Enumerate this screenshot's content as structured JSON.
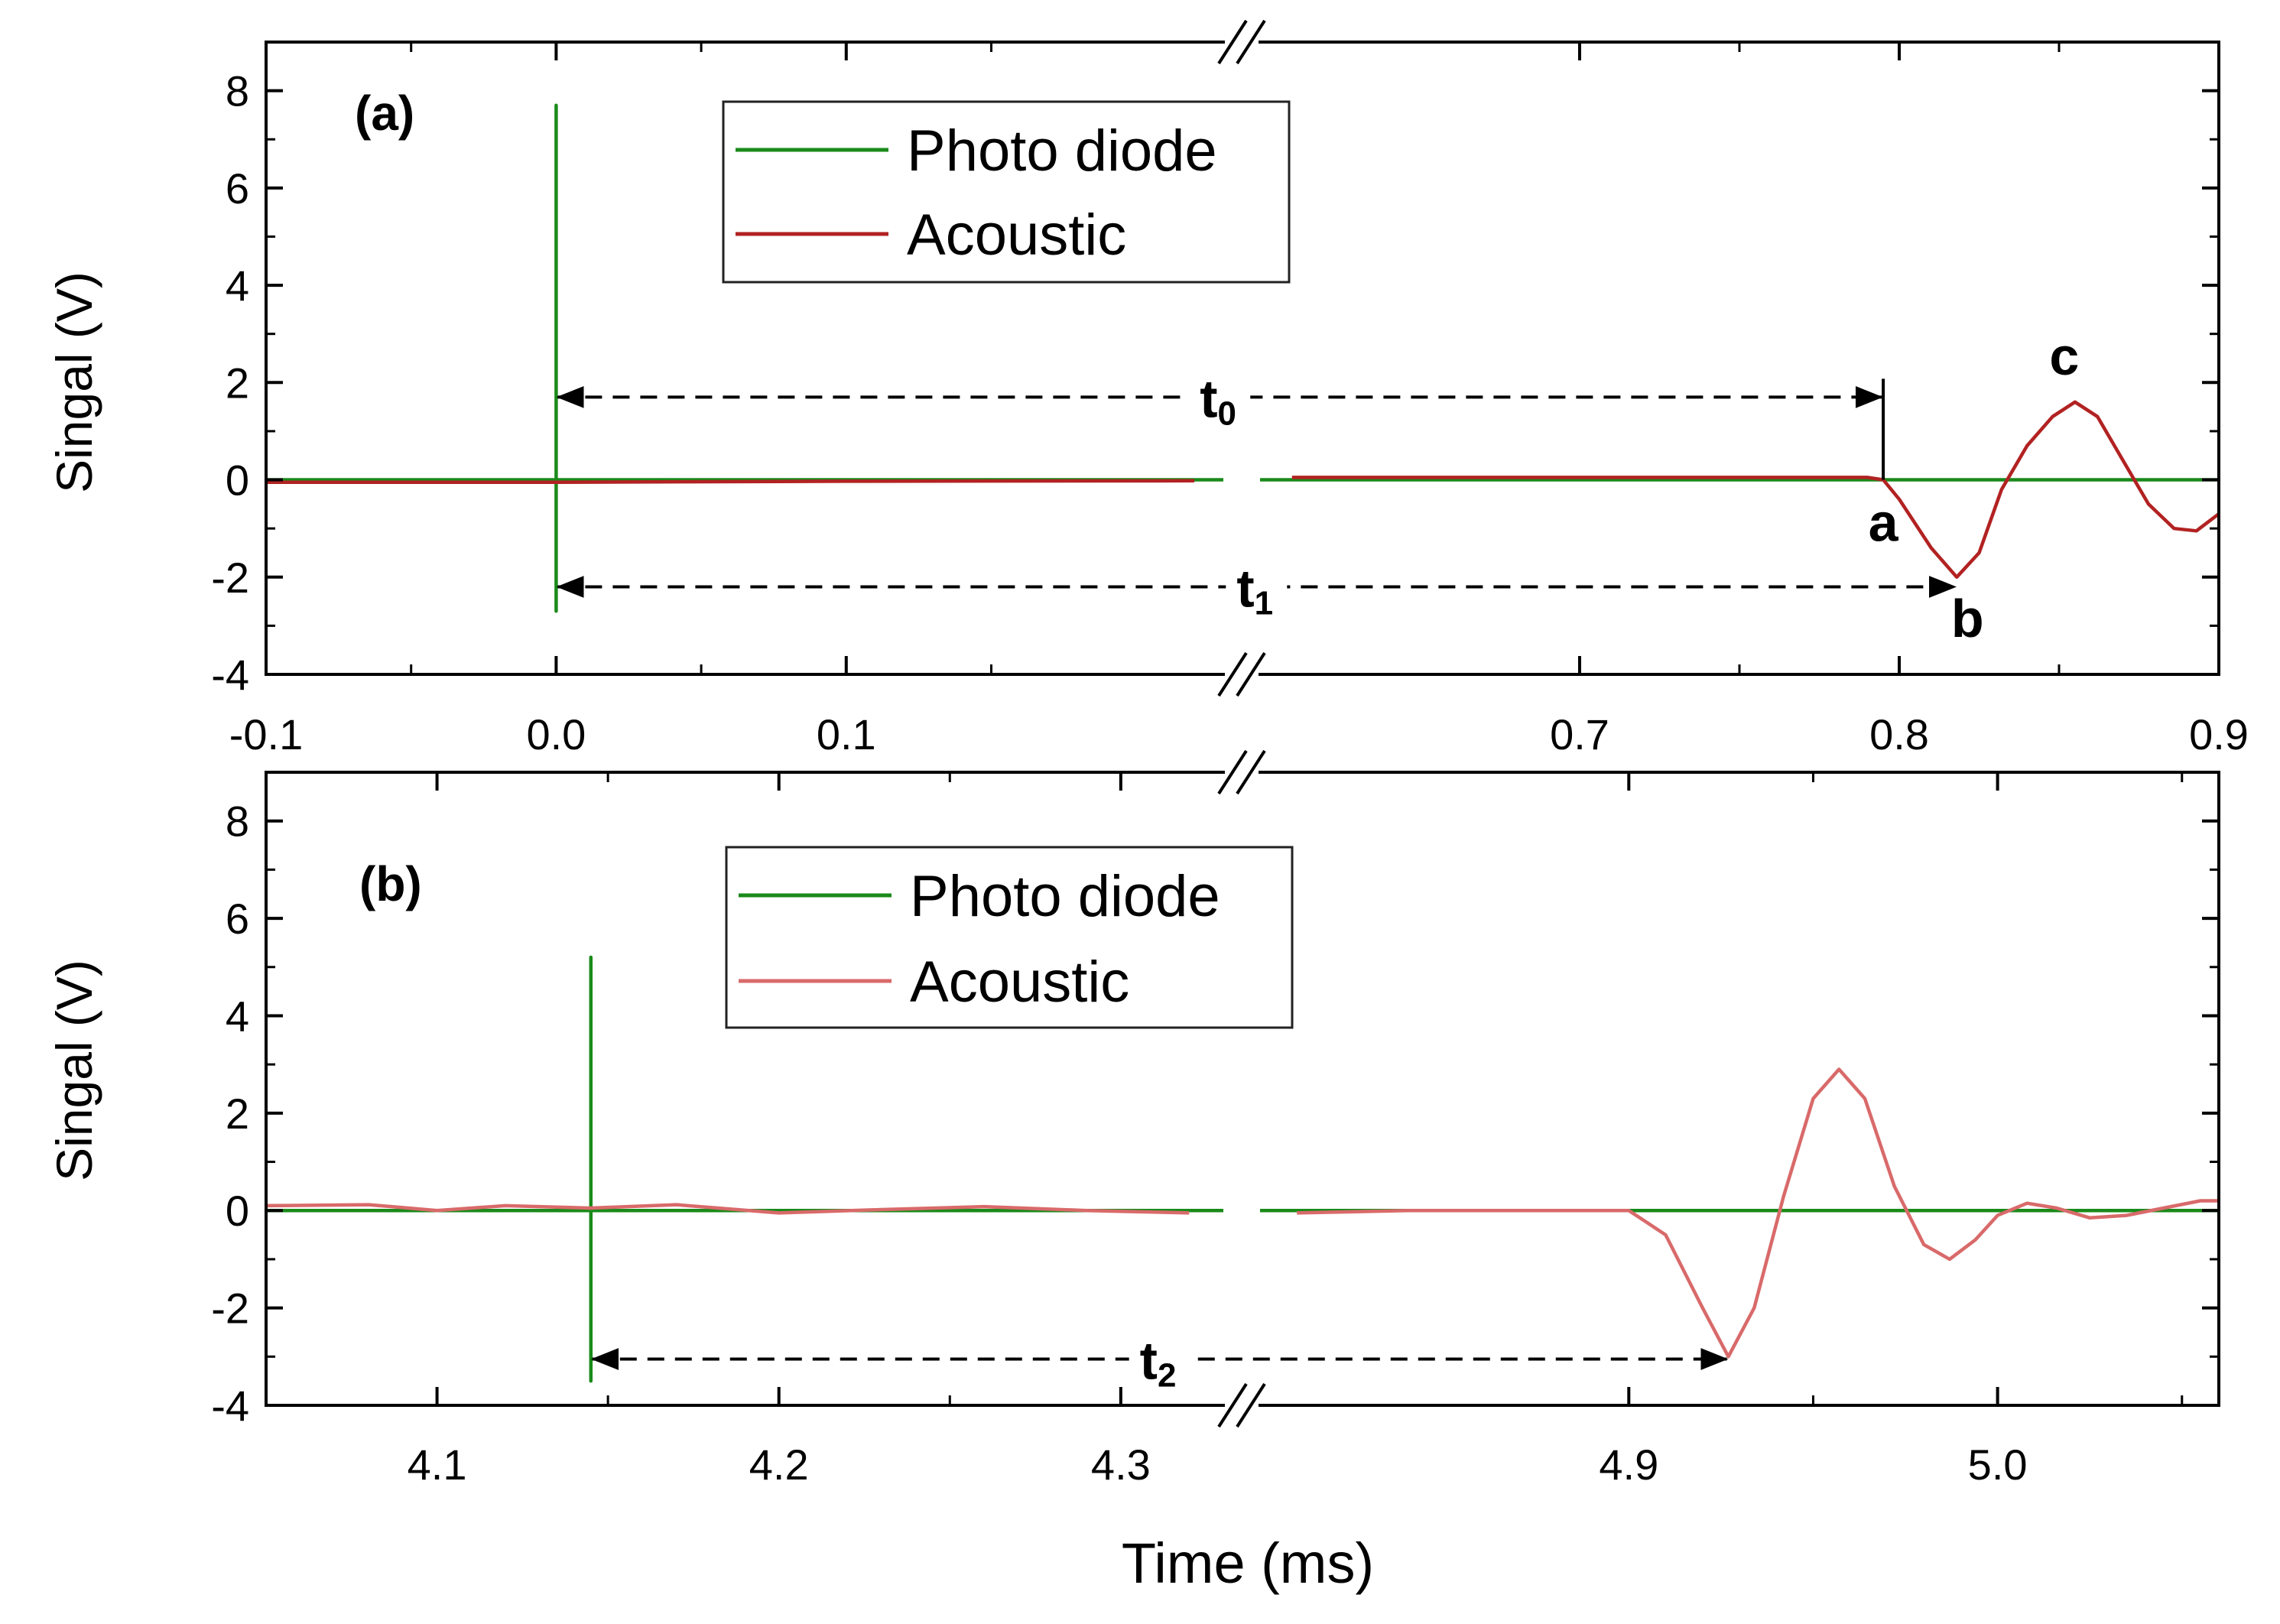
{
  "chart_data": [
    {
      "type": "line",
      "panel_label": "(a)",
      "ylabel": "Singal (V)",
      "xlabel": "",
      "ylim": [
        -4,
        9
      ],
      "yticks": [
        "8",
        "6",
        "4",
        "2",
        "0",
        "-2",
        "-4"
      ],
      "x_segments": [
        {
          "xlim": [
            -0.1,
            0.23
          ],
          "ticks": [
            "-0.1",
            "0.0",
            "0.1"
          ],
          "tick_values": [
            -0.1,
            0.0,
            0.1
          ]
        },
        {
          "xlim": [
            0.6,
            0.9
          ],
          "ticks": [
            "0.7",
            "0.8",
            "0.9"
          ],
          "tick_values": [
            0.7,
            0.8,
            0.9
          ]
        }
      ],
      "legend": {
        "placement": "top-center",
        "entries": [
          {
            "label": "Photo diode",
            "color": "#1a8a1a"
          },
          {
            "label": "Acoustic",
            "color": "#b22222"
          }
        ]
      },
      "series": [
        {
          "name": "Photo diode",
          "color": "#1a8a1a",
          "segments": [
            [
              [
                -0.1,
                0
              ],
              [
                0.0,
                0
              ],
              [
                0.0,
                7.7
              ],
              [
                0.0,
                -2.7
              ],
              [
                0.0,
                0
              ],
              [
                0.23,
                0
              ]
            ],
            [
              [
                0.6,
                0
              ],
              [
                0.9,
                0
              ]
            ]
          ]
        },
        {
          "name": "Acoustic",
          "color": "#b22222",
          "segments": [
            [
              [
                -0.1,
                -0.05
              ],
              [
                0.0,
                -0.05
              ],
              [
                0.1,
                -0.03
              ],
              [
                0.22,
                -0.02
              ]
            ],
            [
              [
                0.61,
                0.05
              ],
              [
                0.7,
                0.05
              ],
              [
                0.79,
                0.05
              ],
              [
                0.795,
                0.0
              ],
              [
                0.8,
                -0.4
              ],
              [
                0.81,
                -1.4
              ],
              [
                0.818,
                -2.0
              ],
              [
                0.825,
                -1.5
              ],
              [
                0.832,
                -0.2
              ],
              [
                0.84,
                0.7
              ],
              [
                0.848,
                1.3
              ],
              [
                0.855,
                1.6
              ],
              [
                0.862,
                1.3
              ],
              [
                0.87,
                0.4
              ],
              [
                0.878,
                -0.5
              ],
              [
                0.886,
                -1.0
              ],
              [
                0.893,
                -1.05
              ],
              [
                0.9,
                -0.7
              ]
            ]
          ]
        }
      ],
      "annotations": [
        {
          "label": "t",
          "subscript": "0",
          "from_x": 0.0,
          "to_x": 0.795,
          "y": 1.7
        },
        {
          "label": "t",
          "subscript": "1",
          "from_x": 0.0,
          "to_x": 0.818,
          "y": -2.2
        }
      ],
      "points": [
        {
          "label": "a",
          "x": 0.795,
          "y": 0
        },
        {
          "label": "b",
          "x": 0.818,
          "y": -2.0
        },
        {
          "label": "c",
          "x": 0.855,
          "y": 1.6
        }
      ]
    },
    {
      "type": "line",
      "panel_label": "(b)",
      "ylabel": "Singal (V)",
      "xlabel": "Time (ms)",
      "ylim": [
        -4,
        9
      ],
      "yticks": [
        "8",
        "6",
        "4",
        "2",
        "0",
        "-2",
        "-4"
      ],
      "x_segments": [
        {
          "xlim": [
            4.05,
            4.33
          ],
          "ticks": [
            "4.1",
            "4.2",
            "4.3"
          ],
          "tick_values": [
            4.1,
            4.2,
            4.3
          ]
        },
        {
          "xlim": [
            4.8,
            5.06
          ],
          "ticks": [
            "4.9",
            "5.0"
          ],
          "tick_values": [
            4.9,
            5.0
          ]
        }
      ],
      "legend": {
        "placement": "top-center",
        "entries": [
          {
            "label": "Photo diode",
            "color": "#1a8a1a"
          },
          {
            "label": "Acoustic",
            "color": "#d96a6a"
          }
        ]
      },
      "series": [
        {
          "name": "Photo diode",
          "color": "#1a8a1a",
          "segments": [
            [
              [
                4.05,
                0
              ],
              [
                4.145,
                0
              ],
              [
                4.145,
                5.2
              ],
              [
                4.145,
                -3.5
              ],
              [
                4.145,
                0
              ],
              [
                4.33,
                0
              ]
            ],
            [
              [
                4.8,
                0
              ],
              [
                5.06,
                0
              ]
            ]
          ]
        },
        {
          "name": "Acoustic",
          "color": "#d96a6a",
          "segments": [
            [
              [
                4.05,
                0.1
              ],
              [
                4.08,
                0.12
              ],
              [
                4.1,
                0.0
              ],
              [
                4.12,
                0.1
              ],
              [
                4.145,
                0.05
              ],
              [
                4.17,
                0.12
              ],
              [
                4.2,
                -0.05
              ],
              [
                4.23,
                0.02
              ],
              [
                4.26,
                0.08
              ],
              [
                4.29,
                0.0
              ],
              [
                4.32,
                -0.05
              ]
            ],
            [
              [
                4.81,
                -0.05
              ],
              [
                4.84,
                0.0
              ],
              [
                4.88,
                0.0
              ],
              [
                4.9,
                0.0
              ],
              [
                4.91,
                -0.5
              ],
              [
                4.92,
                -2.0
              ],
              [
                4.927,
                -3.0
              ],
              [
                4.934,
                -2.0
              ],
              [
                4.942,
                0.3
              ],
              [
                4.95,
                2.3
              ],
              [
                4.957,
                2.9
              ],
              [
                4.964,
                2.3
              ],
              [
                4.972,
                0.5
              ],
              [
                4.98,
                -0.7
              ],
              [
                4.987,
                -1.0
              ],
              [
                4.994,
                -0.6
              ],
              [
                5.0,
                -0.1
              ],
              [
                5.008,
                0.15
              ],
              [
                5.016,
                0.05
              ],
              [
                5.025,
                -0.15
              ],
              [
                5.035,
                -0.1
              ],
              [
                5.045,
                0.05
              ],
              [
                5.055,
                0.2
              ],
              [
                5.06,
                0.2
              ]
            ]
          ]
        }
      ],
      "annotations": [
        {
          "label": "t",
          "subscript": "2",
          "from_x": 4.145,
          "to_x": 4.927,
          "y": -3.05
        }
      ],
      "points": []
    }
  ]
}
